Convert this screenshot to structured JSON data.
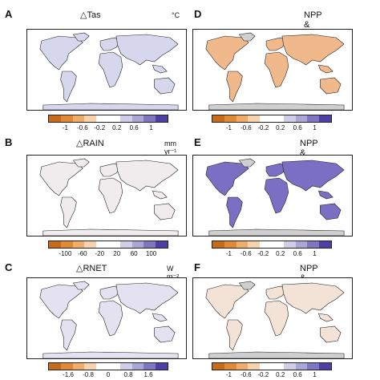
{
  "panels": [
    {
      "letter": "A",
      "title": "△Tas",
      "unit": "°C",
      "ticks": [
        "-1",
        "-0.6",
        "-0.2",
        "0.2",
        "0.6",
        "1"
      ],
      "land": "#d6d7ec",
      "colors": [
        "#c76a1a",
        "#e08a35",
        "#f0ad6a",
        "#f6d2ad",
        "#ffffff",
        "#ffffff",
        "#cfcde8",
        "#aaa6d6",
        "#7f76c2",
        "#4d3fa6"
      ]
    },
    {
      "letter": "D",
      "title": "NPP & Tas",
      "unit": "",
      "ticks": [
        "-1",
        "-0.6",
        "-0.2",
        "0.2",
        "0.6",
        "1"
      ],
      "land": "#f0b98c",
      "colors": [
        "#c76a1a",
        "#e08a35",
        "#f0ad6a",
        "#f6d2ad",
        "#ffffff",
        "#ffffff",
        "#cfcde8",
        "#aaa6d6",
        "#7f76c2",
        "#4d3fa6"
      ]
    },
    {
      "letter": "B",
      "title": "△RAIN",
      "unit": "mm yr⁻¹",
      "ticks": [
        "-100",
        "-60",
        "-20",
        "20",
        "60",
        "100"
      ],
      "land": "#f0ecee",
      "colors": [
        "#c76a1a",
        "#e08a35",
        "#f0ad6a",
        "#f6d2ad",
        "#ffffff",
        "#ffffff",
        "#cfcde8",
        "#aaa6d6",
        "#7f76c2",
        "#4d3fa6"
      ]
    },
    {
      "letter": "E",
      "title": "NPP & RAIN",
      "unit": "",
      "ticks": [
        "-1",
        "-0.6",
        "-0.2",
        "0.2",
        "0.6",
        "1"
      ],
      "land": "#7a6fc2",
      "colors": [
        "#c76a1a",
        "#e08a35",
        "#f0ad6a",
        "#f6d2ad",
        "#ffffff",
        "#ffffff",
        "#cfcde8",
        "#aaa6d6",
        "#7f76c2",
        "#4d3fa6"
      ]
    },
    {
      "letter": "C",
      "title": "△RNET",
      "unit": "W m⁻²",
      "ticks": [
        "-1.6",
        "-0.8",
        "0",
        "0.8",
        "1.6"
      ],
      "land": "#e4e2f0",
      "colors": [
        "#c76a1a",
        "#e08a35",
        "#f0ad6a",
        "#f6d2ad",
        "#ffffff",
        "#ffffff",
        "#cfcde8",
        "#aaa6d6",
        "#7f76c2",
        "#4d3fa6"
      ]
    },
    {
      "letter": "F",
      "title": "NPP & RNET",
      "unit": "",
      "ticks": [
        "-1",
        "-0.6",
        "-0.2",
        "0.2",
        "0.6",
        "1"
      ],
      "land": "#f3e3d6",
      "colors": [
        "#c76a1a",
        "#e08a35",
        "#f0ad6a",
        "#f6d2ad",
        "#ffffff",
        "#ffffff",
        "#cfcde8",
        "#aaa6d6",
        "#7f76c2",
        "#4d3fa6"
      ]
    }
  ]
}
